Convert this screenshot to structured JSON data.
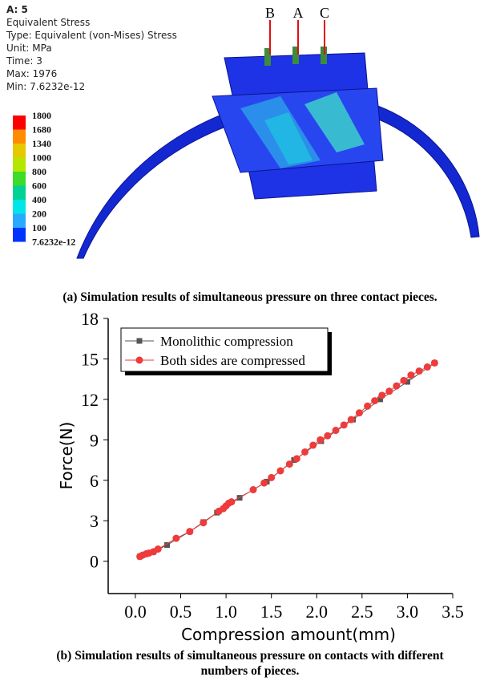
{
  "simulation": {
    "info": [
      "A: 5",
      "Equivalent Stress",
      "Type: Equivalent (von-Mises) Stress",
      "Unit: MPa",
      "Time: 3",
      "Max: 1976",
      "Min: 7.6232e-12"
    ],
    "legend_labels": [
      "1800",
      "1680",
      "1340",
      "1000",
      "800",
      "600",
      "400",
      "200",
      "100",
      "7.6232e-12"
    ],
    "legend_colors": [
      "#ff0000",
      "#ff8c00",
      "#e6c800",
      "#b4e600",
      "#3cdc28",
      "#00d296",
      "#00e6e6",
      "#28aaff",
      "#0032ff"
    ],
    "markers": [
      "B",
      "A",
      "C"
    ],
    "caption": "(a) Simulation results of simultaneous pressure on three contact pieces."
  },
  "chart_data": {
    "type": "line",
    "xlabel": "Compression amount(mm)",
    "ylabel": "Force(N)",
    "xlim": [
      -0.3,
      3.5
    ],
    "ylim": [
      -2.4,
      18
    ],
    "xticks": [
      {
        "value": 0,
        "label": "0.0"
      },
      0.5,
      {
        "value": 1,
        "label": "1.0"
      },
      1.5,
      {
        "value": 2,
        "label": "2.0"
      },
      2.5,
      {
        "value": 3,
        "label": "3.0"
      },
      3.5
    ],
    "yticks": [
      0,
      3,
      6,
      9,
      12,
      15,
      18
    ],
    "legend": "upper left",
    "series": [
      {
        "name": "Monolithic compression",
        "color": "#555555",
        "marker": "square",
        "x": [
          0.05,
          0.2,
          0.35,
          0.6,
          0.75,
          0.9,
          1.15,
          1.45,
          1.75,
          2.05,
          2.4,
          2.7,
          3.0,
          3.3
        ],
        "values": [
          0.35,
          0.7,
          1.2,
          2.2,
          2.9,
          3.6,
          4.7,
          5.9,
          7.5,
          8.9,
          10.5,
          12.0,
          13.3,
          14.7
        ]
      },
      {
        "name": "Both sides are compressed",
        "color": "#ee3b3b",
        "marker": "circle",
        "x": [
          0.05,
          0.08,
          0.12,
          0.15,
          0.2,
          0.25,
          0.45,
          0.6,
          0.75,
          0.92,
          0.97,
          1.0,
          1.03,
          1.06,
          1.3,
          1.42,
          1.5,
          1.6,
          1.7,
          1.78,
          1.87,
          1.96,
          2.04,
          2.12,
          2.21,
          2.3,
          2.38,
          2.47,
          2.56,
          2.64,
          2.72,
          2.8,
          2.88,
          2.96,
          3.04,
          3.13,
          3.22,
          3.3
        ],
        "values": [
          0.35,
          0.45,
          0.55,
          0.6,
          0.7,
          0.9,
          1.7,
          2.2,
          2.85,
          3.7,
          3.9,
          4.1,
          4.3,
          4.4,
          5.3,
          5.8,
          6.2,
          6.7,
          7.2,
          7.6,
          8.1,
          8.6,
          9.0,
          9.3,
          9.7,
          10.1,
          10.5,
          11.0,
          11.5,
          11.9,
          12.3,
          12.6,
          13.0,
          13.4,
          13.8,
          14.1,
          14.4,
          14.7
        ]
      }
    ],
    "caption": [
      "(b) Simulation results of simultaneous pressure on contacts with different",
      "numbers of pieces."
    ]
  }
}
